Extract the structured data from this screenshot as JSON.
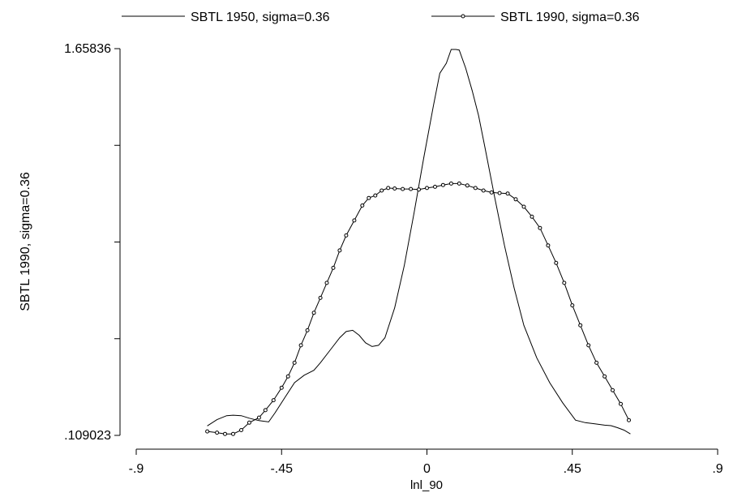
{
  "chart_data": {
    "type": "line",
    "xlabel": "lnl_90",
    "ylabel": "SBTL 1990, sigma=0.36",
    "xlim": [
      -0.9,
      0.9
    ],
    "ylim": [
      0.109023,
      1.65836
    ],
    "x_ticks": [
      {
        "value": -0.9,
        "label": "-.9"
      },
      {
        "value": -0.45,
        "label": "-.45"
      },
      {
        "value": 0,
        "label": "0"
      },
      {
        "value": 0.45,
        "label": ".45"
      },
      {
        "value": 0.9,
        "label": ".9"
      }
    ],
    "y_ticks": [
      {
        "value": 0.109023,
        "label": ".109023"
      },
      {
        "value": 0.496357,
        "label": ""
      },
      {
        "value": 0.883692,
        "label": ""
      },
      {
        "value": 1.271026,
        "label": ""
      },
      {
        "value": 1.65836,
        "label": "1.65836"
      }
    ],
    "legend_position": "top",
    "series": [
      {
        "name": "SBTL 1950, sigma=0.36",
        "marker": "none",
        "x": [
          -0.68,
          -0.65,
          -0.62,
          -0.6,
          -0.575,
          -0.55,
          -0.52,
          -0.49,
          -0.47,
          -0.44,
          -0.41,
          -0.38,
          -0.35,
          -0.33,
          -0.3,
          -0.27,
          -0.25,
          -0.23,
          -0.21,
          -0.19,
          -0.17,
          -0.15,
          -0.13,
          -0.1,
          -0.07,
          -0.04,
          -0.01,
          0.02,
          0.04,
          0.06,
          0.075,
          0.09,
          0.1,
          0.12,
          0.14,
          0.16,
          0.18,
          0.21,
          0.24,
          0.27,
          0.3,
          0.34,
          0.38,
          0.42,
          0.46,
          0.49,
          0.52,
          0.55,
          0.57,
          0.59,
          0.61,
          0.63
        ],
        "y": [
          0.147,
          0.172,
          0.188,
          0.19,
          0.188,
          0.178,
          0.168,
          0.163,
          0.2,
          0.26,
          0.32,
          0.35,
          0.37,
          0.4,
          0.45,
          0.5,
          0.525,
          0.53,
          0.51,
          0.48,
          0.465,
          0.47,
          0.5,
          0.62,
          0.79,
          1.0,
          1.22,
          1.43,
          1.56,
          1.6,
          1.655,
          1.655,
          1.653,
          1.58,
          1.49,
          1.39,
          1.26,
          1.06,
          0.87,
          0.7,
          0.55,
          0.42,
          0.32,
          0.24,
          0.17,
          0.16,
          0.155,
          0.15,
          0.148,
          0.14,
          0.13,
          0.115
        ]
      },
      {
        "name": "SBTL 1990, sigma=0.36",
        "marker": "circle",
        "x": [
          -0.68,
          -0.65,
          -0.625,
          -0.6,
          -0.575,
          -0.55,
          -0.52,
          -0.5,
          -0.475,
          -0.45,
          -0.43,
          -0.41,
          -0.39,
          -0.37,
          -0.35,
          -0.33,
          -0.31,
          -0.29,
          -0.27,
          -0.25,
          -0.225,
          -0.2,
          -0.18,
          -0.16,
          -0.14,
          -0.12,
          -0.1,
          -0.075,
          -0.05,
          -0.025,
          0,
          0.025,
          0.05,
          0.075,
          0.1,
          0.125,
          0.15,
          0.175,
          0.2,
          0.225,
          0.25,
          0.275,
          0.3,
          0.325,
          0.35,
          0.375,
          0.4,
          0.425,
          0.45,
          0.475,
          0.5,
          0.525,
          0.55,
          0.575,
          0.6,
          0.625
        ],
        "y": [
          0.125,
          0.12,
          0.115,
          0.115,
          0.13,
          0.16,
          0.18,
          0.21,
          0.25,
          0.3,
          0.345,
          0.4,
          0.47,
          0.53,
          0.6,
          0.66,
          0.72,
          0.78,
          0.85,
          0.91,
          0.97,
          1.03,
          1.06,
          1.07,
          1.09,
          1.1,
          1.098,
          1.096,
          1.096,
          1.094,
          1.1,
          1.105,
          1.112,
          1.118,
          1.118,
          1.11,
          1.1,
          1.09,
          1.082,
          1.08,
          1.078,
          1.055,
          1.025,
          0.985,
          0.94,
          0.87,
          0.8,
          0.72,
          0.63,
          0.55,
          0.47,
          0.4,
          0.345,
          0.29,
          0.235,
          0.17
        ]
      }
    ]
  }
}
